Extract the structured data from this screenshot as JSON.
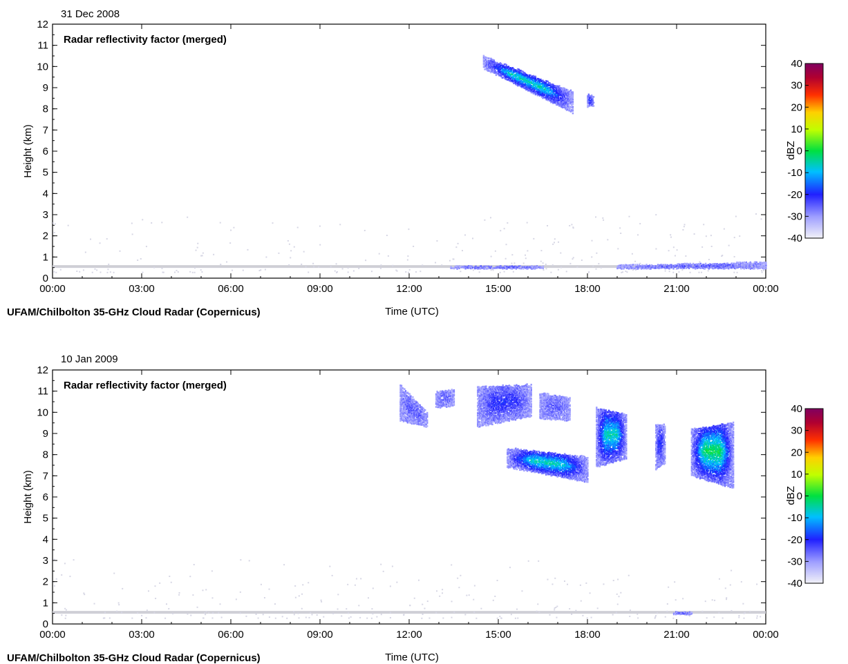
{
  "chart_data": [
    {
      "type": "heatmap",
      "date": "31 Dec 2008",
      "title": "Radar reflectivity factor (merged)",
      "source": "UFAM/Chilbolton 35-GHz Cloud Radar (Copernicus)",
      "xlabel": "Time (UTC)",
      "ylabel": "Height (km)",
      "x_ticks": [
        "00:00",
        "03:00",
        "06:00",
        "09:00",
        "12:00",
        "15:00",
        "18:00",
        "21:00",
        "00:00"
      ],
      "xlim_hours": [
        0,
        24
      ],
      "ylim": [
        0,
        12
      ],
      "y_ticks": [
        0,
        1,
        2,
        3,
        4,
        5,
        6,
        7,
        8,
        9,
        10,
        11,
        12
      ],
      "colorbar": {
        "label": "dBZ",
        "range": [
          -40,
          40
        ],
        "ticks": [
          40,
          30,
          20,
          10,
          0,
          -10,
          -20,
          -30,
          -40
        ]
      },
      "ground_clutter": {
        "height_km": 0.55,
        "from_hour": 0,
        "to_hour": 24
      },
      "echoes": [
        {
          "t_start": 14.5,
          "t_end": 17.5,
          "h_top_start": 10.5,
          "h_top_end": 8.8,
          "h_base_start": 9.9,
          "h_base_end": 7.8,
          "peak_dbz": -5
        },
        {
          "t_start": 18.0,
          "t_end": 18.2,
          "h_top_start": 8.7,
          "h_top_end": 8.6,
          "h_base_start": 8.1,
          "h_base_end": 8.1,
          "peak_dbz": -20
        },
        {
          "t_start": 13.4,
          "t_end": 16.5,
          "h_top_start": 0.6,
          "h_top_end": 0.6,
          "h_base_start": 0.45,
          "h_base_end": 0.45,
          "peak_dbz": -25
        },
        {
          "t_start": 19.0,
          "t_end": 24.0,
          "h_top_start": 0.6,
          "h_top_end": 0.75,
          "h_base_start": 0.45,
          "h_base_end": 0.45,
          "peak_dbz": -25
        }
      ]
    },
    {
      "type": "heatmap",
      "date": "10 Jan 2009",
      "title": "Radar reflectivity factor (merged)",
      "source": "UFAM/Chilbolton 35-GHz Cloud Radar (Copernicus)",
      "xlabel": "Time (UTC)",
      "ylabel": "Height (km)",
      "x_ticks": [
        "00:00",
        "03:00",
        "06:00",
        "09:00",
        "12:00",
        "15:00",
        "18:00",
        "21:00",
        "00:00"
      ],
      "xlim_hours": [
        0,
        24
      ],
      "ylim": [
        0,
        12
      ],
      "y_ticks": [
        0,
        1,
        2,
        3,
        4,
        5,
        6,
        7,
        8,
        9,
        10,
        11,
        12
      ],
      "colorbar": {
        "label": "dBZ",
        "range": [
          -40,
          40
        ],
        "ticks": [
          40,
          30,
          20,
          10,
          0,
          -10,
          -20,
          -30,
          -40
        ]
      },
      "ground_clutter": {
        "height_km": 0.55,
        "from_hour": 0,
        "to_hour": 24
      },
      "echoes": [
        {
          "t_start": 11.7,
          "t_end": 12.6,
          "h_top_start": 11.3,
          "h_top_end": 10.0,
          "h_base_start": 9.6,
          "h_base_end": 9.3,
          "peak_dbz": -25
        },
        {
          "t_start": 12.9,
          "t_end": 13.5,
          "h_top_start": 11.0,
          "h_top_end": 11.1,
          "h_base_start": 10.2,
          "h_base_end": 10.3,
          "peak_dbz": -25
        },
        {
          "t_start": 14.3,
          "t_end": 16.1,
          "h_top_start": 11.2,
          "h_top_end": 11.3,
          "h_base_start": 9.3,
          "h_base_end": 9.8,
          "peak_dbz": -20
        },
        {
          "t_start": 16.4,
          "t_end": 17.4,
          "h_top_start": 10.9,
          "h_top_end": 10.7,
          "h_base_start": 9.7,
          "h_base_end": 9.6,
          "peak_dbz": -25
        },
        {
          "t_start": 15.3,
          "t_end": 18.0,
          "h_top_start": 8.3,
          "h_top_end": 7.9,
          "h_base_start": 7.4,
          "h_base_end": 6.7,
          "peak_dbz": -5
        },
        {
          "t_start": 18.3,
          "t_end": 19.3,
          "h_top_start": 10.2,
          "h_top_end": 9.9,
          "h_base_start": 7.4,
          "h_base_end": 7.8,
          "peak_dbz": -5
        },
        {
          "t_start": 20.3,
          "t_end": 20.6,
          "h_top_start": 9.4,
          "h_top_end": 9.4,
          "h_base_start": 7.3,
          "h_base_end": 7.6,
          "peak_dbz": -20
        },
        {
          "t_start": 21.5,
          "t_end": 22.9,
          "h_top_start": 9.2,
          "h_top_end": 9.5,
          "h_base_start": 7.0,
          "h_base_end": 6.4,
          "peak_dbz": 0
        },
        {
          "t_start": 20.9,
          "t_end": 21.5,
          "h_top_start": 0.55,
          "h_top_end": 0.55,
          "h_base_start": 0.45,
          "h_base_end": 0.45,
          "peak_dbz": -25
        }
      ]
    }
  ]
}
